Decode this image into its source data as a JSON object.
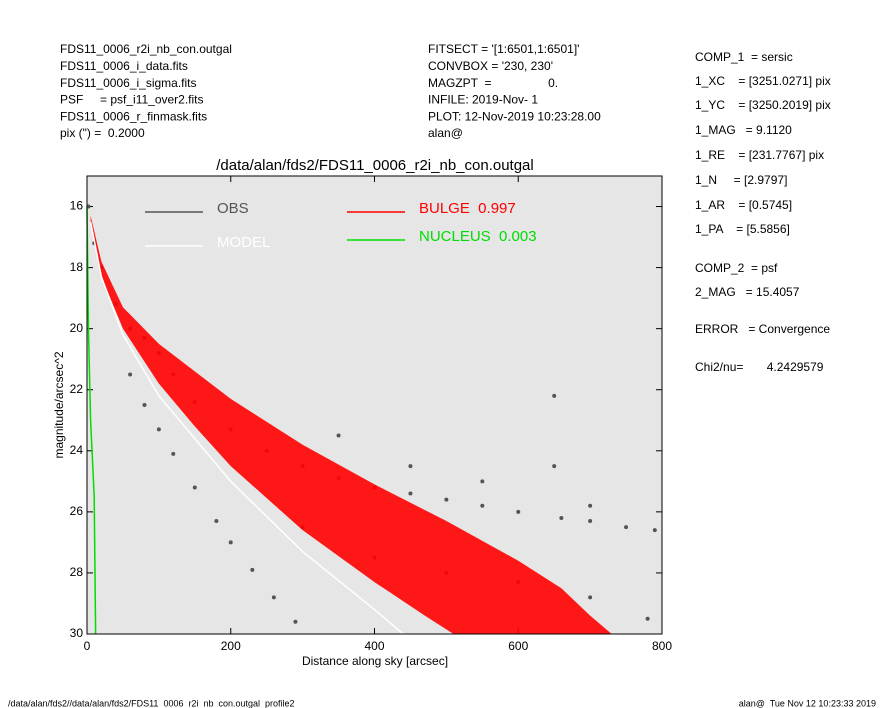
{
  "chart_data": {
    "type": "scatter",
    "title": "/data/alan/fds2/FDS11_0006_r2i_nb_con.outgal",
    "x_label": "Distance along sky [arcsec]",
    "y_label": "magnitude/arcsec^2",
    "xlim": [
      0,
      800
    ],
    "xticks": [
      0,
      200,
      400,
      600,
      800
    ],
    "ylim": [
      30,
      15
    ],
    "yticks": [
      16,
      18,
      20,
      22,
      24,
      26,
      28,
      30
    ],
    "background": "#e6e6e6",
    "header_left": [
      "FDS11_0006_r2i_nb_con.outgal",
      "FDS11_0006_i_data.fits",
      "FDS11_0006_i_sigma.fits",
      "PSF     = psf_i11_over2.fits",
      "FDS11_0006_r_finmask.fits",
      "pix (\") =  0.2000"
    ],
    "header_mid": [
      "FITSECT = '[1:6501,1:6501]'",
      "CONVBOX = '230, 230'",
      "MAGZPT  =                 0.",
      "INFILE: 2019-Nov- 1",
      "PLOT: 12-Nov-2019 10:23:28.00",
      "alan@"
    ],
    "header_right": [
      "COMP_1  = sersic",
      "1_XC    = [3251.0271] pix",
      "1_YC    = [3250.2019] pix",
      "1_MAG   = 9.1120",
      "1_RE    = [231.7767] pix",
      "1_N     = [2.9797]",
      "1_AR    = [0.5745]",
      "1_PA    = [5.5856]",
      "COMP_2  = psf",
      "2_MAG   = 15.4057",
      "ERROR   = Convergence",
      "Chi2/nu=       4.2429579"
    ],
    "footer_left": "/data/alan/fds2//data/alan/fds2/FDS11_0006_r2i_nb_con.outgal_profile2",
    "footer_right": "alan@  Tue Nov 12 10:23:33 2019",
    "series": [
      {
        "name": "OBS",
        "color": "#555555",
        "kind": "points",
        "x": [
          2,
          10,
          20,
          40,
          60,
          80,
          100,
          120,
          150,
          200,
          250,
          300,
          350,
          400,
          450,
          500,
          550,
          600,
          650,
          650,
          660,
          700,
          750,
          790,
          60,
          80,
          100,
          120,
          150,
          180,
          200,
          230,
          260,
          290,
          300,
          400,
          500,
          600,
          700,
          780,
          350,
          450,
          550,
          700
        ],
        "values": [
          16,
          17.2,
          18,
          19.2,
          20,
          20.3,
          20.8,
          21.5,
          22.4,
          23.3,
          24.0,
          24.5,
          24.9,
          25.2,
          25.4,
          25.6,
          25.8,
          26.0,
          22.2,
          24.5,
          26.2,
          26.3,
          26.5,
          26.6,
          21.5,
          22.5,
          23.3,
          24.1,
          25.2,
          26.3,
          27.0,
          27.9,
          28.8,
          29.6,
          26.5,
          27.5,
          28.0,
          28.3,
          28.8,
          29.5,
          23.5,
          24.5,
          25.0,
          25.8
        ]
      },
      {
        "name": "MODEL",
        "color": "#ffffff",
        "kind": "line",
        "x": [
          5,
          20,
          50,
          100,
          200,
          300,
          400,
          440
        ],
        "values": [
          16.5,
          18.3,
          20.2,
          22.2,
          25.0,
          27.3,
          29.2,
          30
        ]
      },
      {
        "name": "BULGE  0.997",
        "color": "#ff0000",
        "kind": "band",
        "x": [
          5,
          20,
          50,
          100,
          200,
          300,
          400,
          500,
          600,
          660,
          700,
          730
        ],
        "values": [
          16.3,
          17.8,
          19.3,
          20.5,
          22.3,
          23.8,
          25.1,
          26.3,
          27.6,
          28.5,
          29.4,
          30
        ],
        "x_low": [
          5,
          20,
          50,
          100,
          150,
          200,
          300,
          400,
          470,
          510
        ],
        "values_low": [
          16.5,
          18.3,
          20.0,
          21.8,
          23.2,
          24.5,
          26.6,
          28.3,
          29.4,
          30
        ]
      },
      {
        "name": "NUCLEUS  0.003",
        "color": "#00dd00",
        "kind": "line",
        "x": [
          0,
          2,
          5,
          10,
          12
        ],
        "values": [
          16,
          20,
          23,
          25.5,
          30
        ]
      }
    ]
  }
}
